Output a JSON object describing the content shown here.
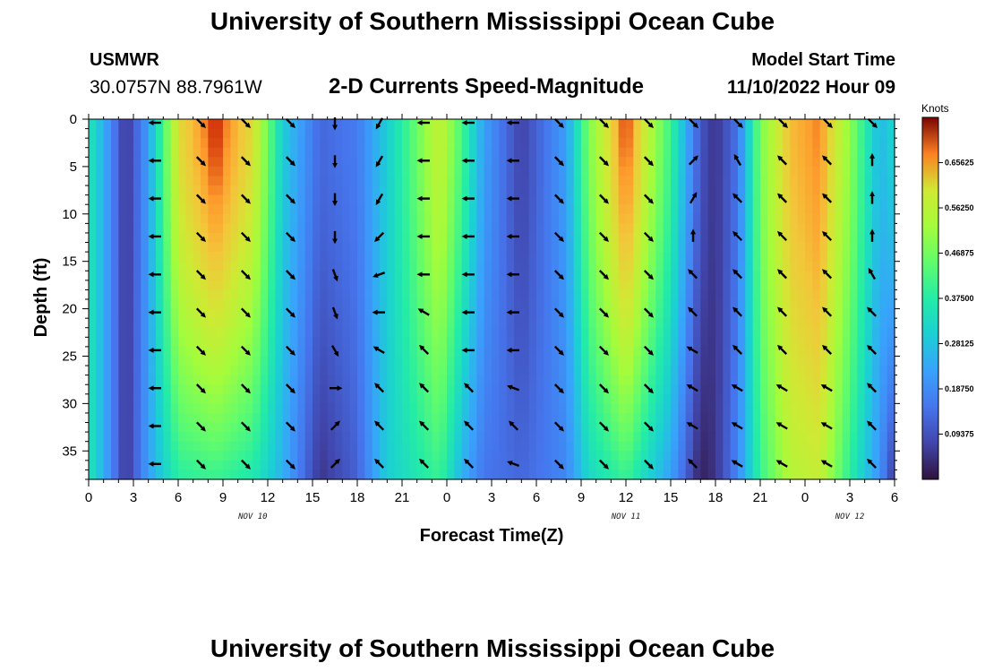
{
  "header": {
    "title": "University of Southern Mississippi Ocean Cube",
    "station_id": "USMWR",
    "coordinates": "30.0757N  88.7961W",
    "subtitle": "2-D Currents Speed-Magnitude",
    "model_start_label": "Model Start Time",
    "model_start_value": "11/10/2022 Hour 09"
  },
  "footer": {
    "title": "University of Southern Mississippi Ocean Cube"
  },
  "chart_data": {
    "type": "heatmap",
    "title": "2-D Currents Speed-Magnitude",
    "xlabel": "Forecast Time(Z)",
    "ylabel": "Depth (ft)",
    "x_hours_range": [
      0,
      54
    ],
    "y_range_ft": [
      0,
      38
    ],
    "y_inverted": true,
    "x_tick_labels": [
      "0",
      "3",
      "6",
      "9",
      "12",
      "15",
      "18",
      "21",
      "0",
      "3",
      "6",
      "9",
      "12",
      "15",
      "18",
      "21",
      "0",
      "3",
      "6"
    ],
    "y_tick_labels": [
      "0",
      "5",
      "10",
      "15",
      "20",
      "25",
      "30",
      "35"
    ],
    "y_tick_values": [
      0,
      5,
      10,
      15,
      20,
      25,
      30,
      35
    ],
    "day_labels": [
      {
        "label": "NOV 10",
        "hour": 11
      },
      {
        "label": "NOV 11",
        "hour": 36
      },
      {
        "label": "NOV 12",
        "hour": 51
      }
    ],
    "colorbar": {
      "unit": "Knots",
      "min": 0,
      "max": 0.75,
      "tick_labels": [
        "0.65625",
        "0.56250",
        "0.46875",
        "0.37500",
        "0.28125",
        "0.18750",
        "0.09375"
      ],
      "tick_values": [
        0.65625,
        0.5625,
        0.46875,
        0.375,
        0.28125,
        0.1875,
        0.09375
      ]
    },
    "speed_profile": {
      "hours": [
        0,
        1,
        2.5,
        4,
        6,
        8.5,
        11,
        13,
        15.5,
        18,
        20,
        23.5,
        25,
        26.5,
        29,
        32,
        33.5,
        36,
        39,
        41,
        42,
        43.5,
        45,
        47,
        49,
        51,
        53,
        54
      ],
      "surface_knots": [
        0.36,
        0.25,
        0.05,
        0.22,
        0.62,
        0.73,
        0.62,
        0.3,
        0.13,
        0.16,
        0.3,
        0.58,
        0.42,
        0.22,
        0.07,
        0.22,
        0.48,
        0.73,
        0.4,
        0.1,
        0.05,
        0.15,
        0.48,
        0.66,
        0.7,
        0.5,
        0.26,
        0.32
      ],
      "bottom_knots": [
        0.36,
        0.25,
        0.05,
        0.22,
        0.38,
        0.4,
        0.36,
        0.25,
        0.05,
        0.12,
        0.3,
        0.4,
        0.25,
        0.15,
        0.13,
        0.18,
        0.32,
        0.4,
        0.22,
        0.02,
        0.05,
        0.18,
        0.4,
        0.55,
        0.58,
        0.38,
        0.2,
        0.05
      ]
    },
    "vector_grid": {
      "hours": [
        4.5,
        7.5,
        10.5,
        13.5,
        16.5,
        19.5,
        22.5,
        25.5,
        28.5,
        31.5,
        34.5,
        37.5,
        40.5,
        43.5,
        46.5,
        49.5,
        52.5
      ],
      "depths_ft": [
        0,
        4,
        8,
        12,
        16,
        20,
        24,
        28,
        32,
        36
      ],
      "directions_deg": [
        [
          270,
          135,
          135,
          135,
          180,
          210,
          270,
          270,
          270,
          135,
          135,
          135,
          135,
          135,
          135,
          135,
          135
        ],
        [
          270,
          135,
          135,
          135,
          180,
          210,
          270,
          270,
          270,
          135,
          135,
          135,
          45,
          330,
          315,
          315,
          0
        ],
        [
          270,
          135,
          135,
          135,
          180,
          210,
          270,
          270,
          270,
          135,
          135,
          135,
          30,
          315,
          315,
          315,
          0
        ],
        [
          270,
          135,
          135,
          135,
          180,
          225,
          270,
          270,
          270,
          135,
          135,
          135,
          0,
          315,
          315,
          315,
          0
        ],
        [
          270,
          135,
          135,
          135,
          160,
          250,
          270,
          270,
          270,
          135,
          135,
          135,
          315,
          315,
          315,
          315,
          330
        ],
        [
          270,
          135,
          135,
          135,
          160,
          270,
          300,
          270,
          270,
          135,
          135,
          135,
          315,
          315,
          315,
          315,
          315
        ],
        [
          270,
          135,
          135,
          135,
          150,
          300,
          315,
          270,
          270,
          135,
          135,
          135,
          300,
          315,
          315,
          315,
          315
        ],
        [
          270,
          135,
          135,
          135,
          90,
          315,
          315,
          315,
          290,
          135,
          135,
          135,
          300,
          300,
          300,
          300,
          315
        ],
        [
          270,
          135,
          135,
          135,
          45,
          315,
          315,
          315,
          315,
          135,
          135,
          135,
          300,
          300,
          300,
          300,
          315
        ],
        [
          270,
          135,
          135,
          135,
          45,
          315,
          315,
          315,
          290,
          135,
          135,
          135,
          315,
          300,
          300,
          300,
          315
        ]
      ]
    }
  }
}
